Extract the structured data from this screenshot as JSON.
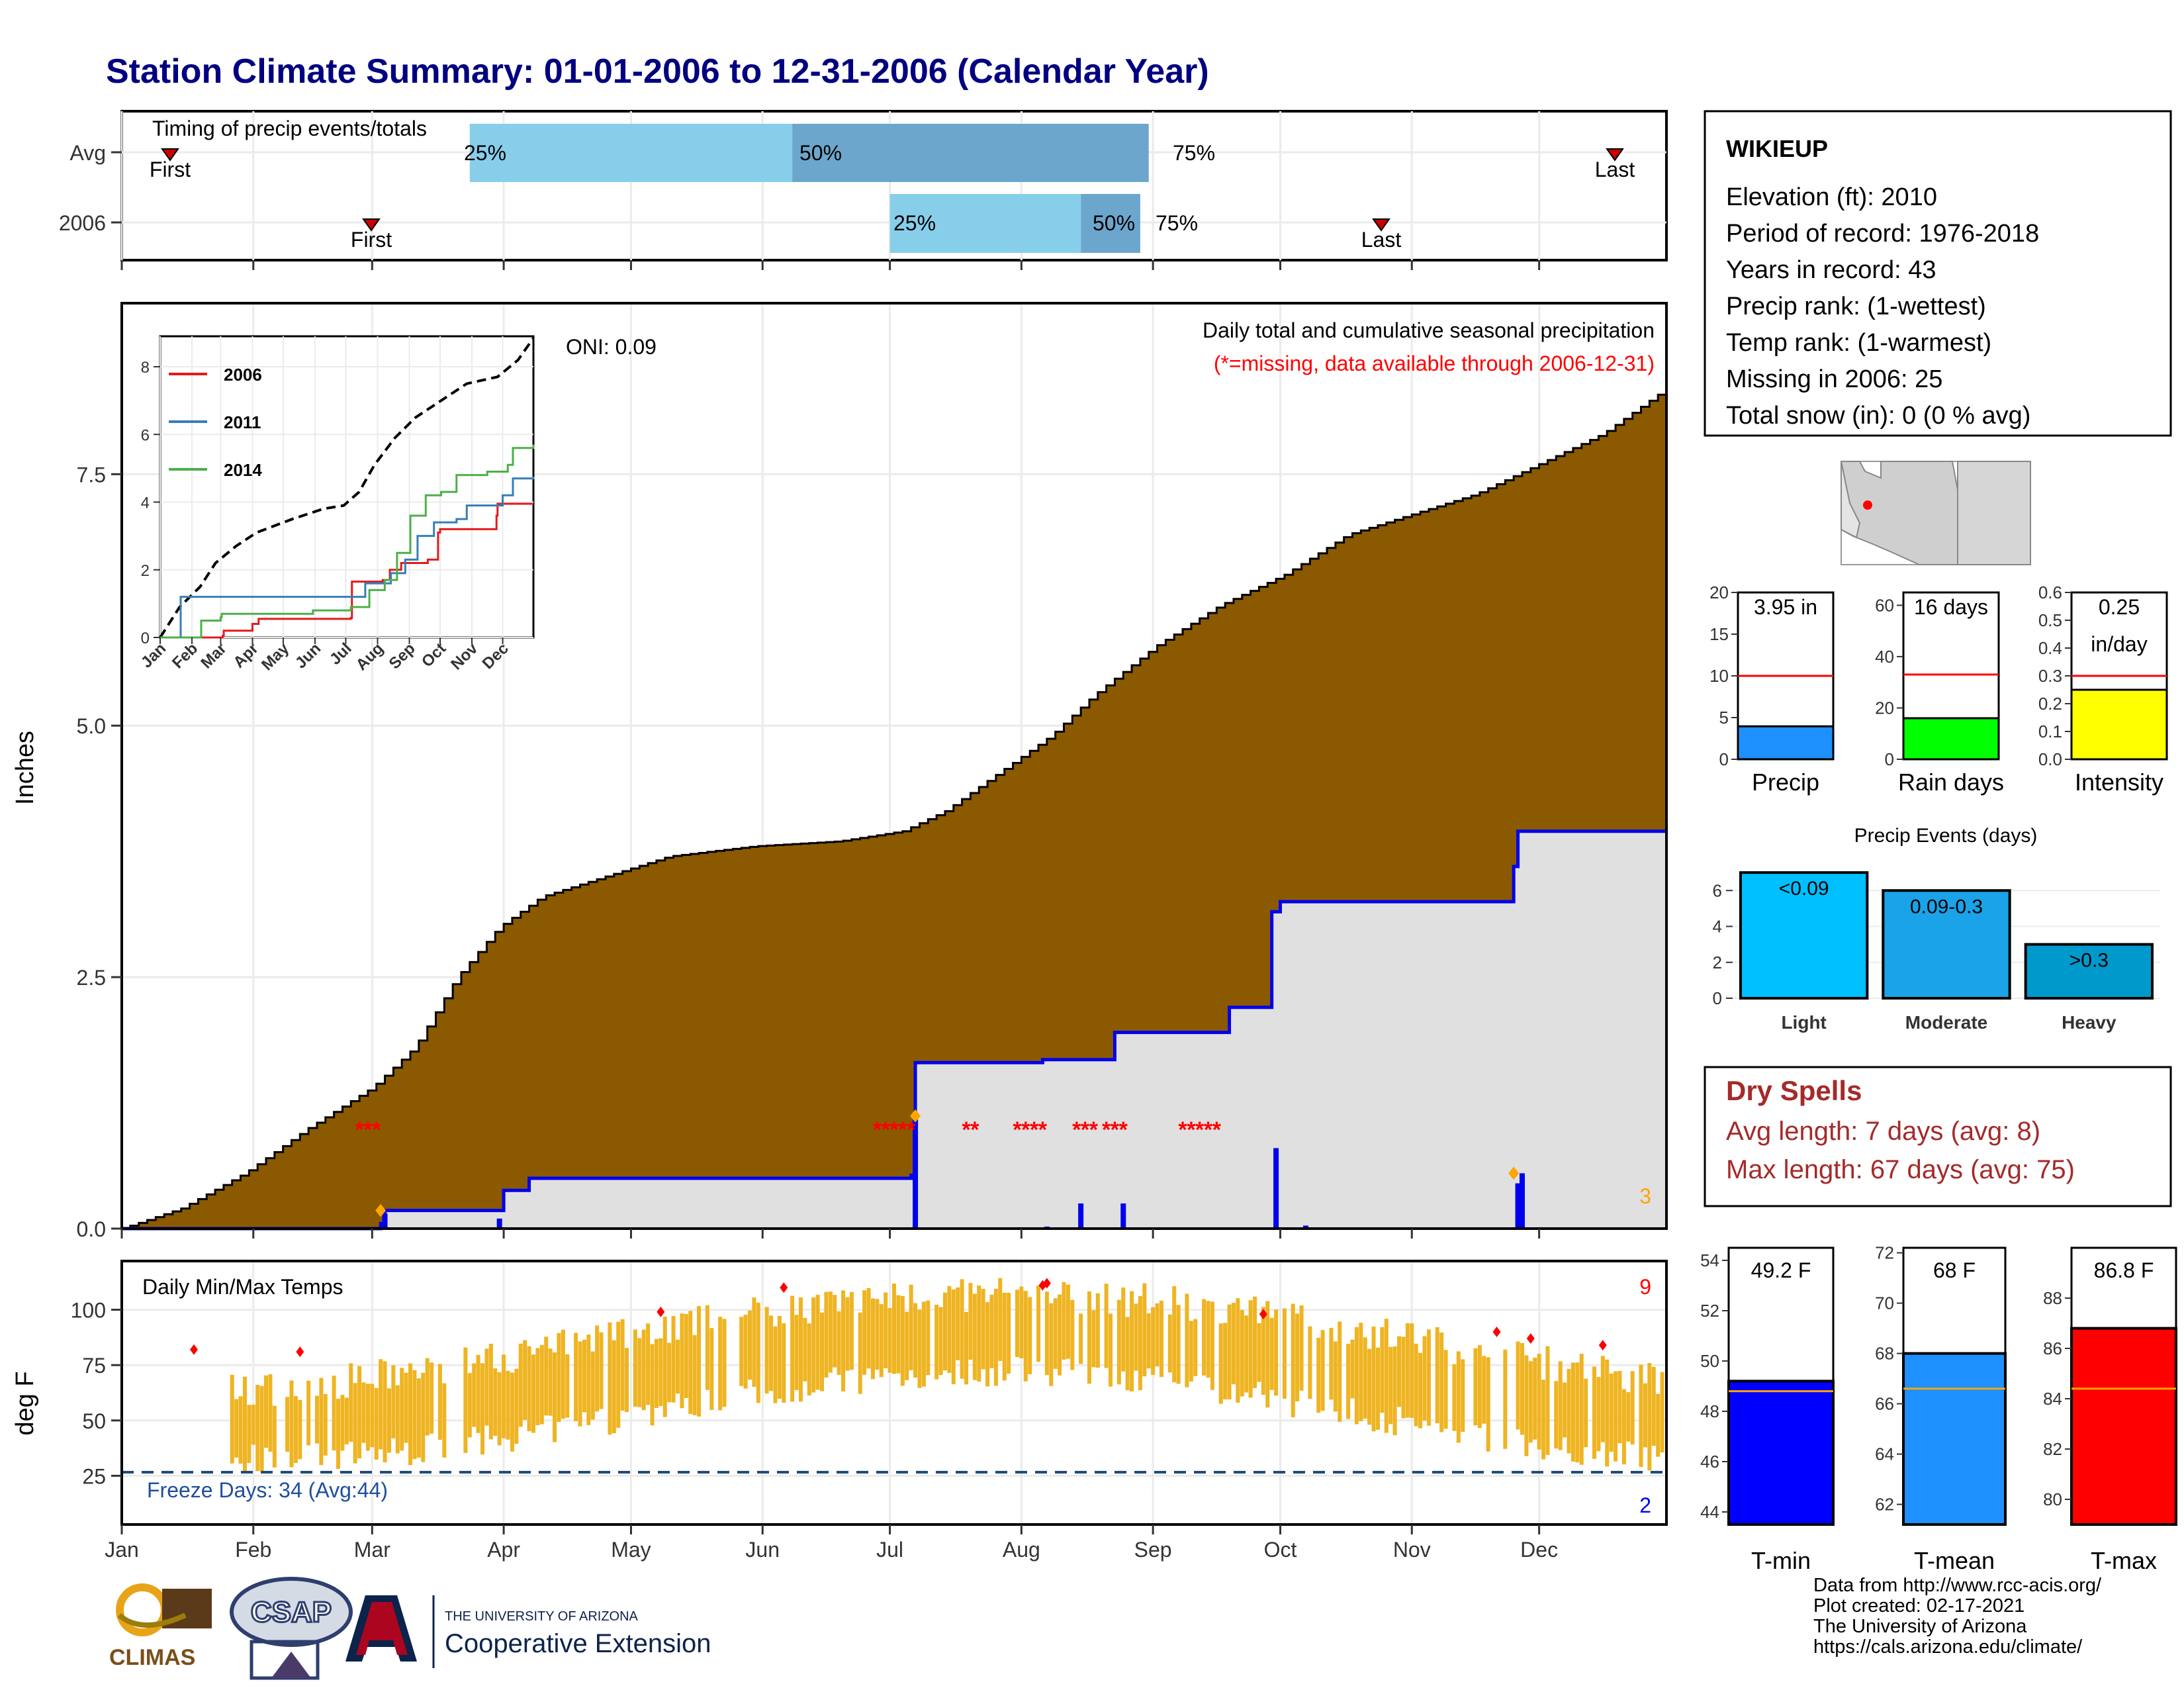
{
  "title": "Station Climate Summary: 01-01-2006 to 12-31-2006 (Calendar Year)",
  "colors": {
    "title": "#000080",
    "precip_fill": "#8B5A00",
    "current_fill": "#E0E0E0",
    "current_line": "#0000EE",
    "quartile_light": "#87CEEB",
    "quartile_dark": "#6CA6CD",
    "tmax": "#FF0000",
    "tmin": "#0000FF",
    "temp_bars": "#EEB422",
    "dry": "#A52A2A"
  },
  "timing_panel": {
    "title": "Timing of precip events/totals",
    "rows": [
      "Avg",
      "2006"
    ],
    "first_label": "First",
    "last_label": "Last",
    "q25": "25%",
    "q50": "50%",
    "q75": "75%"
  },
  "main_panel": {
    "ylabel": "Inches",
    "yticks": [
      "0.0",
      "2.5",
      "5.0",
      "7.5"
    ],
    "oni": "ONI: 0.09",
    "legend_title": "Daily total and cumulative seasonal precipitation",
    "legend_missing": "(*=missing, data available through 2006-12-31)",
    "corner_count": "3"
  },
  "inset": {
    "yticks": [
      "0",
      "2",
      "4",
      "6",
      "8"
    ],
    "months": [
      "Jan",
      "Feb",
      "Mar",
      "Apr",
      "May",
      "Jun",
      "Jul",
      "Aug",
      "Sep",
      "Oct",
      "Nov",
      "Dec"
    ],
    "series": [
      {
        "name": "2006",
        "color": "#E41A1C"
      },
      {
        "name": "2011",
        "color": "#377EB8"
      },
      {
        "name": "2014",
        "color": "#4DAF4A"
      }
    ]
  },
  "temp_panel": {
    "ylabel": "deg F",
    "title": "Daily Min/Max Temps",
    "yticks": [
      "25",
      "50",
      "75",
      "100"
    ],
    "freeze": "Freeze Days: 34 (Avg:44)",
    "count_hot": "9",
    "count_cold": "2",
    "months": [
      "Jan",
      "Feb",
      "Mar",
      "Apr",
      "May",
      "Jun",
      "Jul",
      "Aug",
      "Sep",
      "Oct",
      "Nov",
      "Dec"
    ]
  },
  "station": {
    "name": "WIKIEUP",
    "lines": [
      "Elevation (ft): 2010",
      "Period of record: 1976-2018",
      "Years in record: 43",
      "Precip rank:  (1-wettest)",
      "Temp rank:  (1-warmest)",
      "Missing in 2006: 25",
      "Total snow (in): 0 (0 % avg)"
    ]
  },
  "precip_stats": [
    {
      "label": "Precip",
      "value_text": "3.95 in",
      "value": 3.95,
      "avg": 10,
      "ymax": 20,
      "yticks": [
        "0",
        "5",
        "10",
        "15",
        "20"
      ],
      "color": "#1E90FF"
    },
    {
      "label": "Rain days",
      "value_text": "16 days",
      "value": 16,
      "avg": 33,
      "ymax": 65,
      "yticks": [
        "0",
        "20",
        "40",
        "60"
      ],
      "color": "#00FF00"
    },
    {
      "label": "Intensity",
      "value_text": "0.25",
      "value_text2": "in/day",
      "value": 0.25,
      "avg": 0.3,
      "ymax": 0.6,
      "yticks": [
        "0.0",
        "0.1",
        "0.2",
        "0.3",
        "0.4",
        "0.5",
        "0.6"
      ],
      "color": "#FFFF00"
    }
  ],
  "events": {
    "title": "Precip Events (days)",
    "yticks": [
      "0",
      "2",
      "4",
      "6"
    ],
    "bars": [
      {
        "label": "Light",
        "range": "<0.09",
        "value": 7,
        "color": "#00BFFF"
      },
      {
        "label": "Moderate",
        "range": "0.09-0.3",
        "value": 6,
        "color": "#1AA3E8"
      },
      {
        "label": "Heavy",
        "range": ">0.3",
        "value": 3,
        "color": "#0099CC"
      }
    ]
  },
  "dry_spells": {
    "title": "Dry Spells",
    "avg": "Avg length: 7 days (avg: 8)",
    "max": "Max length: 67 days (avg: 75)"
  },
  "temp_stats": [
    {
      "label": "T-min",
      "value_text": "49.2 F",
      "value": 49.2,
      "avg": 48.8,
      "ymin": 43.5,
      "ymax": 54.5,
      "yticks": [
        "44",
        "46",
        "48",
        "50",
        "52",
        "54"
      ],
      "color": "#0000FF"
    },
    {
      "label": "T-mean",
      "value_text": "68 F",
      "value": 68,
      "avg": 66.6,
      "ymin": 61.2,
      "ymax": 72.2,
      "yticks": [
        "62",
        "64",
        "66",
        "68",
        "70",
        "72"
      ],
      "color": "#1E90FF"
    },
    {
      "label": "T-max",
      "value_text": "86.8 F",
      "value": 86.8,
      "avg": 84.4,
      "ymin": 79,
      "ymax": 90,
      "yticks": [
        "80",
        "82",
        "84",
        "86",
        "88"
      ],
      "color": "#FF0000"
    }
  ],
  "credits": [
    "Data from http://www.rcc-acis.org/",
    "Plot created: 02-17-2021",
    "The University of Arizona",
    "https://cals.arizona.edu/climate/"
  ],
  "logos": {
    "climas": "CLIMAS",
    "csap": "CSAP",
    "ua_top": "THE UNIVERSITY OF ARIZONA",
    "ua_bottom": "Cooperative Extension"
  },
  "chart_data": {
    "type": "area",
    "title": "Station Climate Summary: 01-01-2006 to 12-31-2006 (Calendar Year)",
    "ylabel": "Inches",
    "ylim": [
      0,
      9.2
    ],
    "avg_cumulative": [
      [
        1,
        0
      ],
      [
        15,
        0.2
      ],
      [
        30,
        0.55
      ],
      [
        45,
        1.0
      ],
      [
        60,
        1.4
      ],
      [
        70,
        1.8
      ],
      [
        80,
        2.5
      ],
      [
        90,
        3.0
      ],
      [
        100,
        3.3
      ],
      [
        115,
        3.5
      ],
      [
        130,
        3.7
      ],
      [
        150,
        3.8
      ],
      [
        170,
        3.85
      ],
      [
        185,
        3.95
      ],
      [
        195,
        4.15
      ],
      [
        210,
        4.6
      ],
      [
        220,
        4.9
      ],
      [
        230,
        5.3
      ],
      [
        245,
        5.8
      ],
      [
        260,
        6.2
      ],
      [
        275,
        6.5
      ],
      [
        290,
        6.9
      ],
      [
        305,
        7.1
      ],
      [
        320,
        7.3
      ],
      [
        335,
        7.6
      ],
      [
        350,
        7.9
      ],
      [
        365,
        8.35
      ]
    ],
    "current_cumulative": [
      [
        1,
        0
      ],
      [
        62,
        0.05
      ],
      [
        63,
        0.18
      ],
      [
        90,
        0.18
      ],
      [
        91,
        0.38
      ],
      [
        96,
        0.38
      ],
      [
        97,
        0.5
      ],
      [
        187,
        0.53
      ],
      [
        188,
        1.65
      ],
      [
        218,
        1.68
      ],
      [
        235,
        1.95
      ],
      [
        262,
        2.2
      ],
      [
        272,
        3.15
      ],
      [
        274,
        3.25
      ],
      [
        329,
        3.6
      ],
      [
        330,
        3.95
      ],
      [
        365,
        3.95
      ]
    ],
    "daily_precip": [
      [
        63,
        0.15
      ],
      [
        90,
        0.1
      ],
      [
        188,
        1.12
      ],
      [
        219,
        0.02
      ],
      [
        227,
        0.25
      ],
      [
        237,
        0.25
      ],
      [
        273,
        0.8
      ],
      [
        280,
        0.03
      ],
      [
        330,
        0.45
      ],
      [
        331,
        0.55
      ]
    ],
    "temps": {
      "tmax_avg_peak": 103,
      "tmax_avg_min": 62,
      "tmin_avg_peak": 72,
      "tmin_avg_min": 33
    }
  }
}
